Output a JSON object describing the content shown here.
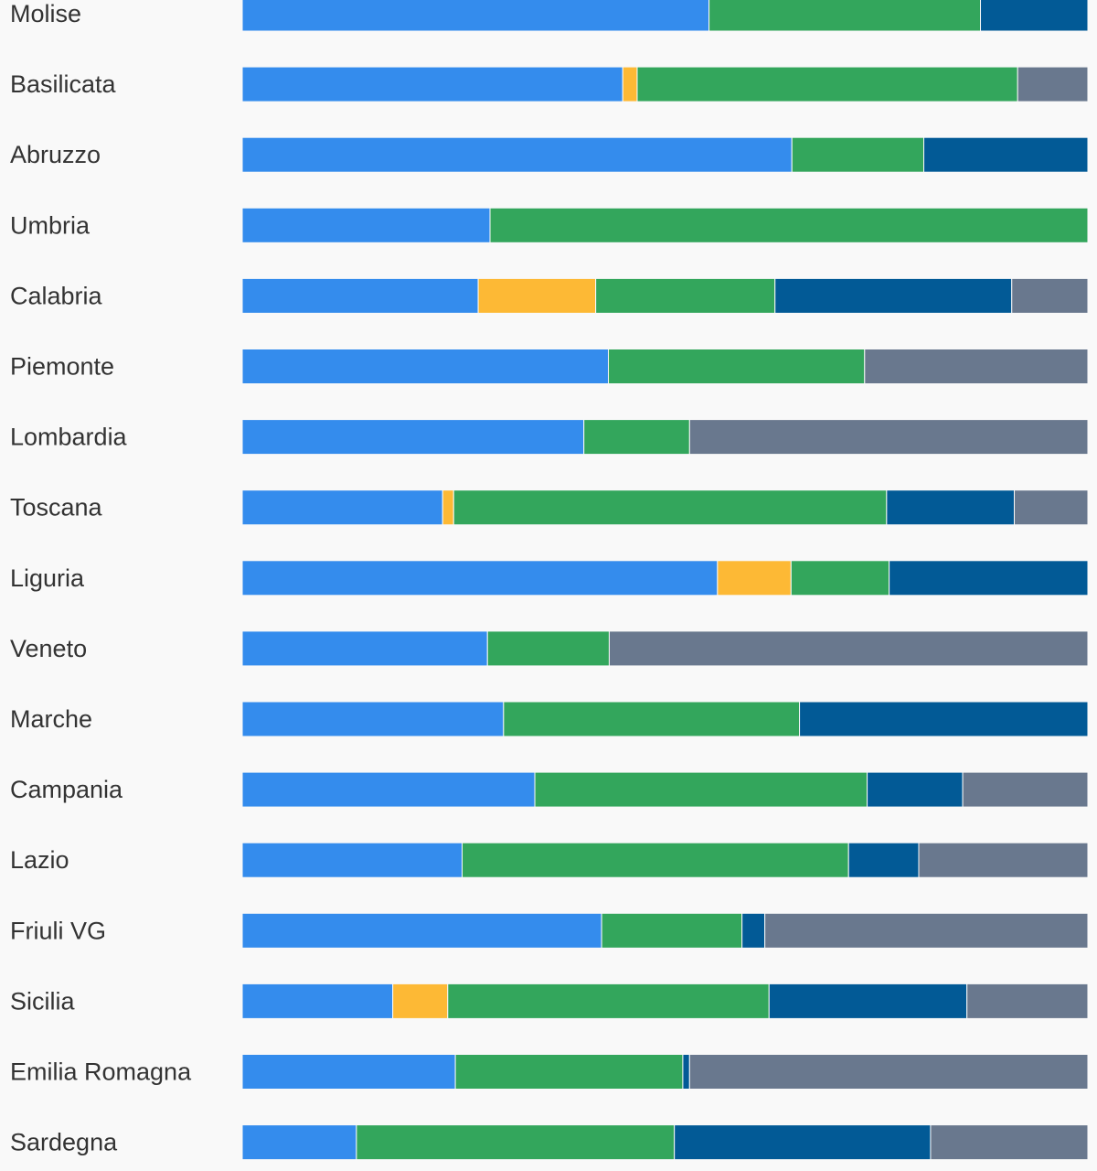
{
  "chart_data": {
    "type": "bar",
    "orientation": "horizontal",
    "stacked": true,
    "normalized": true,
    "title": "",
    "xlabel": "",
    "ylabel": "",
    "xlim": [
      0,
      100
    ],
    "grid": false,
    "legend": "none",
    "categories": [
      "Molise",
      "Basilicata",
      "Abruzzo",
      "Umbria",
      "Calabria",
      "Piemonte",
      "Lombardia",
      "Toscana",
      "Liguria",
      "Veneto",
      "Marche",
      "Campania",
      "Lazio",
      "Friuli VG",
      "Sicilia",
      "Emilia Romagna",
      "Sardegna"
    ],
    "series": [
      {
        "color": "#348ced",
        "values": [
          55.2,
          45.0,
          65.0,
          29.3,
          27.9,
          43.3,
          40.4,
          23.7,
          56.2,
          29.0,
          30.9,
          34.6,
          26.0,
          42.5,
          17.8,
          25.2,
          13.5
        ]
      },
      {
        "color": "#fdb935",
        "values": [
          0,
          1.7,
          0,
          0,
          13.9,
          0,
          0,
          1.3,
          8.7,
          0,
          0,
          0,
          0,
          0,
          6.5,
          0,
          0
        ]
      },
      {
        "color": "#33a65c",
        "values": [
          32.1,
          45.0,
          15.6,
          70.7,
          21.2,
          30.3,
          12.5,
          51.2,
          11.6,
          14.4,
          35.0,
          39.3,
          45.7,
          16.6,
          38.0,
          26.9,
          37.6
        ]
      },
      {
        "color": "#025a96",
        "values": [
          12.7,
          0,
          19.4,
          0,
          28.0,
          0,
          0,
          15.1,
          23.5,
          0,
          34.1,
          11.3,
          8.3,
          2.7,
          23.4,
          0.8,
          30.3
        ]
      },
      {
        "color": "#69788e",
        "values": [
          0,
          8.3,
          0,
          0,
          9.0,
          26.4,
          47.1,
          8.7,
          0,
          56.6,
          0,
          14.8,
          20.0,
          38.2,
          14.3,
          47.1,
          18.6
        ]
      }
    ]
  }
}
